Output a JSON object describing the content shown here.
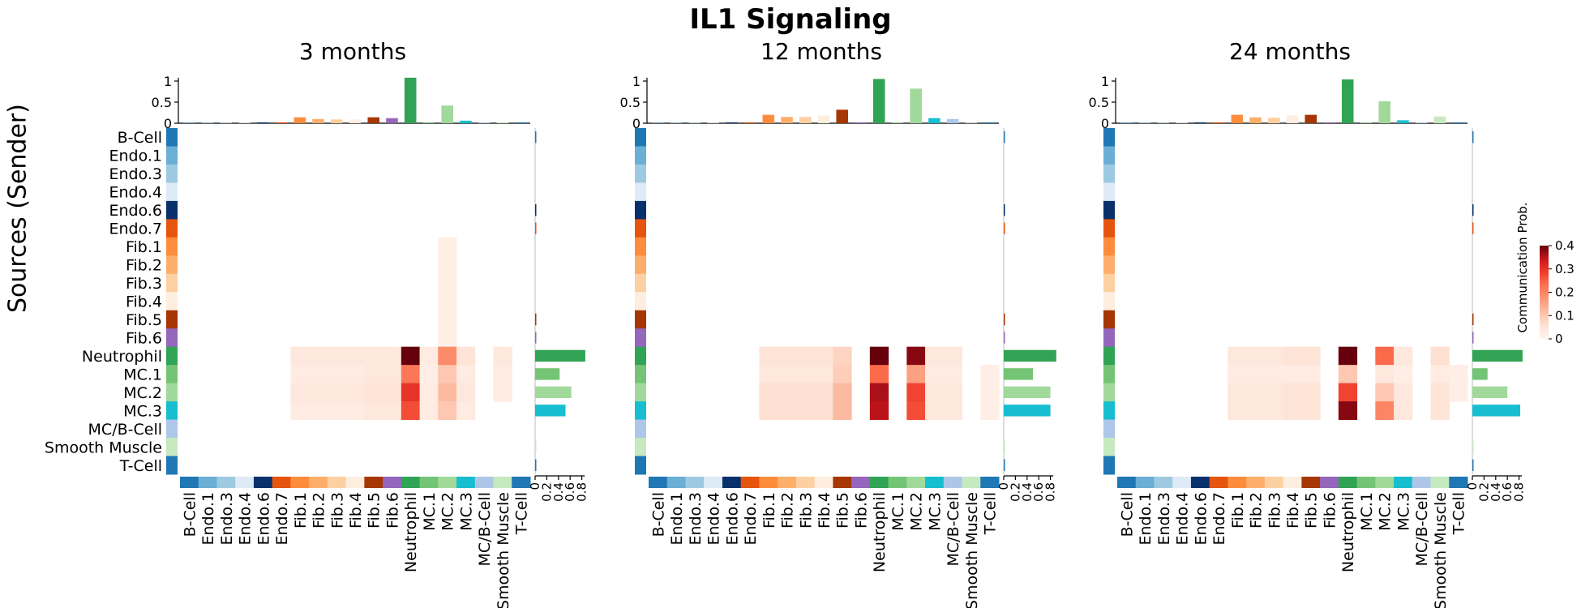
{
  "title": "IL1 Signaling",
  "ylabel": "Sources (Sender)",
  "colorbar": {
    "label": "Communication Prob.",
    "ticks": [
      "0",
      "0.1",
      "0.2",
      "0.3",
      "0.4"
    ],
    "vmax": 0.4,
    "low_color": "#fff5f0",
    "high_color": "#67000d"
  },
  "chart_data": {
    "type": "heatmap",
    "cell_types": [
      "B-Cell",
      "Endo.1",
      "Endo.3",
      "Endo.4",
      "Endo.6",
      "Endo.7",
      "Fib.1",
      "Fib.2",
      "Fib.3",
      "Fib.4",
      "Fib.5",
      "Fib.6",
      "Neutrophil",
      "MC.1",
      "MC.2",
      "MC.3",
      "MC/B-Cell",
      "Smooth Muscle",
      "T-Cell"
    ],
    "cell_colors": [
      "#1f77b4",
      "#6baed6",
      "#9ecae1",
      "#deebf7",
      "#08306b",
      "#e6550d",
      "#fd8d3c",
      "#fdae6b",
      "#fdd0a2",
      "#feeee0",
      "#a63603",
      "#9467bd",
      "#31a354",
      "#74c476",
      "#a1d99b",
      "#17becf",
      "#aec7e8",
      "#c7e9c0",
      "#1f77b4"
    ],
    "top_bar_ticks": [
      "0",
      "0.5",
      "1"
    ],
    "right_bar_ticks": [
      "0",
      "0.2",
      "0.4",
      "0.6",
      "0.8"
    ],
    "panels": [
      {
        "title": "3 months",
        "matrix": {
          "Fib.1": {
            "MC.2": 0.02
          },
          "Fib.2": {
            "MC.2": 0.02
          },
          "Fib.3": {
            "MC.2": 0.02
          },
          "Fib.4": {
            "MC.2": 0.02
          },
          "Fib.5": {
            "MC.2": 0.02
          },
          "Fib.6": {
            "MC.2": 0.02
          },
          "Neutrophil": {
            "Fib.1": 0.04,
            "Fib.2": 0.04,
            "Fib.3": 0.04,
            "Fib.4": 0.04,
            "Fib.5": 0.04,
            "Fib.6": 0.04,
            "Neutrophil": 0.4,
            "MC.1": 0.03,
            "MC.2": 0.19,
            "MC.3": 0.05,
            "Smooth Muscle": 0.04
          },
          "MC.1": {
            "Fib.1": 0.03,
            "Fib.2": 0.03,
            "Fib.3": 0.03,
            "Fib.4": 0.03,
            "Fib.5": 0.04,
            "Fib.6": 0.04,
            "Neutrophil": 0.22,
            "MC.1": 0.02,
            "MC.2": 0.1,
            "MC.3": 0.03,
            "Smooth Muscle": 0.03
          },
          "MC.2": {
            "Fib.1": 0.04,
            "Fib.2": 0.04,
            "Fib.3": 0.04,
            "Fib.4": 0.04,
            "Fib.5": 0.05,
            "Fib.6": 0.05,
            "Neutrophil": 0.3,
            "MC.1": 0.03,
            "MC.2": 0.12,
            "MC.3": 0.04,
            "Smooth Muscle": 0.03
          },
          "MC.3": {
            "Fib.1": 0.03,
            "Fib.2": 0.03,
            "Fib.3": 0.03,
            "Fib.4": 0.03,
            "Fib.5": 0.04,
            "Fib.6": 0.04,
            "Neutrophil": 0.27,
            "MC.1": 0.03,
            "MC.2": 0.1,
            "MC.3": 0.03
          }
        },
        "top_bars": [
          0.01,
          0.01,
          0.01,
          0.01,
          0.02,
          0.02,
          0.14,
          0.1,
          0.09,
          0.09,
          0.14,
          0.12,
          1.08,
          0.02,
          0.42,
          0.06,
          0.02,
          0.02,
          0.02
        ],
        "right_bars": [
          0.01,
          0,
          0,
          0,
          0.01,
          0.01,
          0,
          0,
          0,
          0,
          0.01,
          0.01,
          0.86,
          0.42,
          0.62,
          0.52,
          0,
          0.01,
          0.01
        ]
      },
      {
        "title": "12 months",
        "matrix": {
          "Neutrophil": {
            "Fib.1": 0.05,
            "Fib.2": 0.05,
            "Fib.3": 0.05,
            "Fib.4": 0.05,
            "Fib.5": 0.08,
            "Fib.6": 0.0,
            "Neutrophil": 0.4,
            "MC.1": 0.0,
            "MC.2": 0.38,
            "MC.3": 0.04,
            "MC/B-Cell": 0.04
          },
          "MC.1": {
            "Fib.1": 0.04,
            "Fib.2": 0.04,
            "Fib.3": 0.04,
            "Fib.4": 0.04,
            "Fib.5": 0.09,
            "Neutrophil": 0.24,
            "MC.2": 0.16,
            "MC.3": 0.03,
            "MC/B-Cell": 0.03,
            "T-Cell": 0.02
          },
          "MC.2": {
            "Fib.1": 0.06,
            "Fib.2": 0.06,
            "Fib.3": 0.06,
            "Fib.4": 0.06,
            "Fib.5": 0.12,
            "Neutrophil": 0.36,
            "MC.2": 0.28,
            "MC.3": 0.04,
            "MC/B-Cell": 0.04,
            "T-Cell": 0.02
          },
          "MC.3": {
            "Fib.1": 0.06,
            "Fib.2": 0.06,
            "Fib.3": 0.06,
            "Fib.4": 0.06,
            "Fib.5": 0.12,
            "Neutrophil": 0.35,
            "MC.2": 0.27,
            "MC.3": 0.04,
            "MC/B-Cell": 0.04,
            "T-Cell": 0.02
          }
        },
        "top_bars": [
          0.01,
          0.01,
          0.01,
          0.01,
          0.02,
          0.02,
          0.2,
          0.15,
          0.15,
          0.18,
          0.32,
          0.02,
          1.05,
          0.01,
          0.82,
          0.12,
          0.1,
          0.01,
          0.02
        ],
        "right_bars": [
          0.01,
          0,
          0,
          0,
          0.01,
          0.01,
          0,
          0,
          0,
          0,
          0.01,
          0.01,
          0.9,
          0.5,
          0.8,
          0.8,
          0,
          0.01,
          0.01
        ]
      },
      {
        "title": "24 months",
        "matrix": {
          "Neutrophil": {
            "Fib.1": 0.04,
            "Fib.2": 0.04,
            "Fib.3": 0.04,
            "Fib.4": 0.05,
            "Fib.5": 0.05,
            "Neutrophil": 0.4,
            "MC.2": 0.24,
            "MC.3": 0.04,
            "Smooth Muscle": 0.06
          },
          "MC.1": {
            "Fib.1": 0.03,
            "Fib.2": 0.03,
            "Fib.3": 0.03,
            "Fib.4": 0.03,
            "Fib.5": 0.03,
            "Neutrophil": 0.1,
            "MC.2": 0.04,
            "MC.3": 0.02,
            "Smooth Muscle": 0.03,
            "T-Cell": 0.02
          },
          "MC.2": {
            "Fib.1": 0.04,
            "Fib.2": 0.04,
            "Fib.3": 0.04,
            "Fib.4": 0.05,
            "Fib.5": 0.05,
            "Neutrophil": 0.28,
            "MC.2": 0.1,
            "MC.3": 0.04,
            "Smooth Muscle": 0.05,
            "T-Cell": 0.02
          },
          "MC.3": {
            "Fib.1": 0.04,
            "Fib.2": 0.04,
            "Fib.3": 0.04,
            "Fib.4": 0.05,
            "Fib.5": 0.05,
            "Neutrophil": 0.38,
            "MC.2": 0.2,
            "MC.3": 0.04,
            "Smooth Muscle": 0.05
          }
        },
        "top_bars": [
          0.01,
          0.01,
          0.01,
          0.01,
          0.02,
          0.02,
          0.2,
          0.14,
          0.13,
          0.18,
          0.2,
          0.02,
          1.04,
          0.01,
          0.52,
          0.07,
          0.02,
          0.16,
          0.02
        ],
        "right_bars": [
          0.01,
          0,
          0,
          0,
          0.01,
          0.01,
          0,
          0,
          0,
          0,
          0.01,
          0.01,
          0.86,
          0.26,
          0.6,
          0.82,
          0,
          0.01,
          0.01
        ]
      }
    ]
  }
}
